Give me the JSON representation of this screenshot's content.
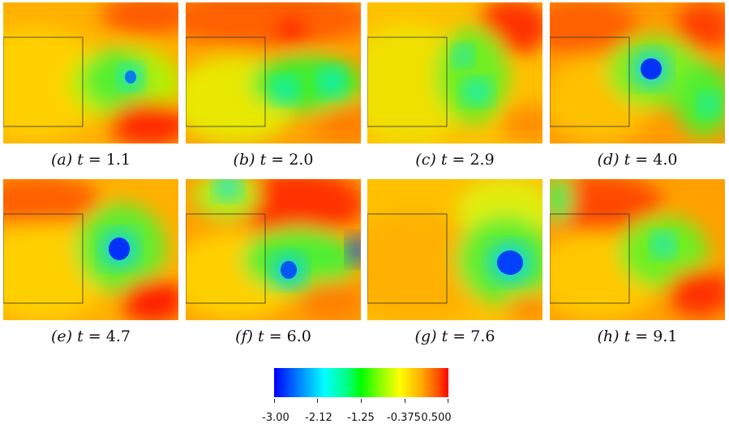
{
  "panels": [
    {
      "label": "(a)",
      "t_value": "1.1"
    },
    {
      "label": "(b)",
      "t_value": "2.0"
    },
    {
      "label": "(c)",
      "t_value": "2.9"
    },
    {
      "label": "(d)",
      "t_value": "4.0"
    },
    {
      "label": "(e)",
      "t_value": "4.7"
    },
    {
      "label": "(f)",
      "t_value": "6.0"
    },
    {
      "label": "(g)",
      "t_value": "7.6"
    },
    {
      "label": "(h)",
      "t_value": "9.1"
    }
  ],
  "t_symbol": "t =",
  "colorbar": {
    "ticks": [
      "-3.00",
      "-2.12",
      "-1.25",
      "-0.375",
      "0.500"
    ],
    "min": -3.0,
    "max": 0.5
  },
  "colors": {
    "red": "#ff2000",
    "orange": "#ff9000",
    "yellow": "#f2e600",
    "green": "#3cf000",
    "cyan": "#00f0e0",
    "blue": "#0020ff"
  }
}
